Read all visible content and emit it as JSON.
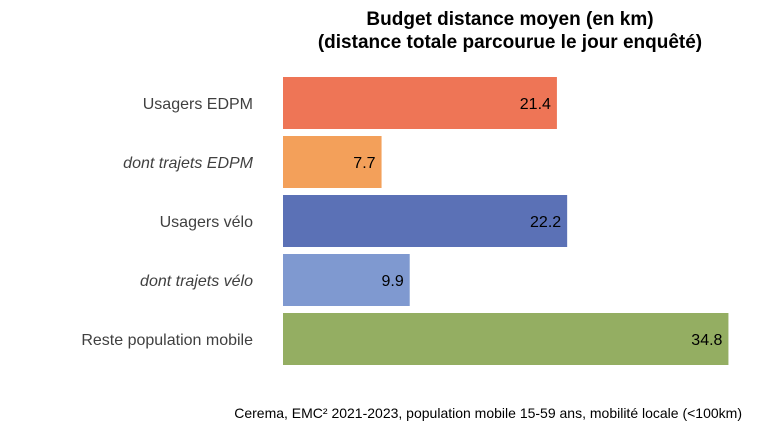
{
  "chart_data": {
    "type": "bar",
    "orientation": "horizontal",
    "title": [
      "Budget distance moyen (en km)",
      "(distance totale parcourue le jour enquêté)"
    ],
    "categories": [
      "Usagers EDPM",
      "dont trajets EDPM",
      "Usagers vélo",
      "dont trajets vélo",
      "Reste population mobile"
    ],
    "italic": [
      false,
      true,
      false,
      true,
      false
    ],
    "values": [
      21.4,
      7.7,
      22.2,
      9.9,
      34.8
    ],
    "value_labels": [
      "21.4",
      "7.7",
      "22.2",
      "9.9",
      "34.8"
    ],
    "colors": [
      "#EE7556",
      "#F3A05A",
      "#5B71B6",
      "#7F99D0",
      "#94AE62"
    ],
    "xlim": [
      0,
      35
    ],
    "grid": false,
    "legend": "none"
  },
  "source": "Cerema, EMC² 2021-2023, population mobile 15-59 ans, mobilité locale (<100km)"
}
